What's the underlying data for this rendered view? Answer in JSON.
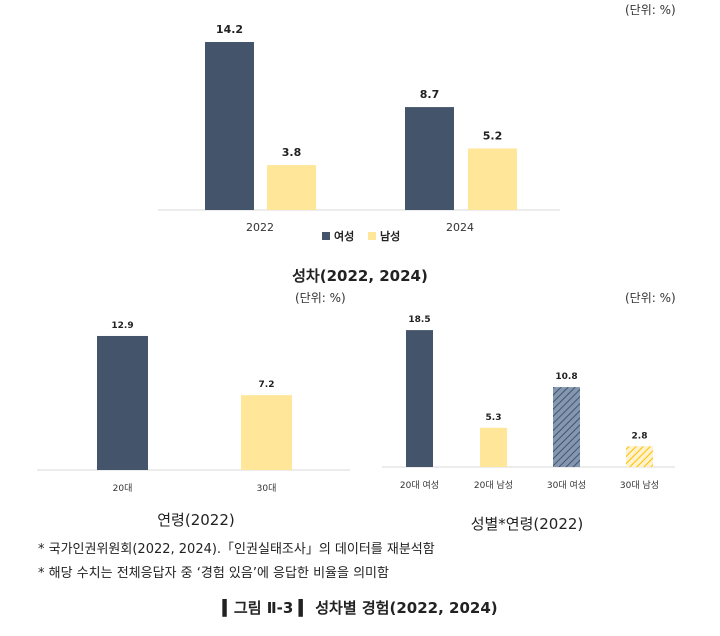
{
  "colors": {
    "women": "#44546a",
    "men": "#ffe699",
    "women30_hatch": "#8497b0",
    "men30_hatch": "#ffc000",
    "axis": "#d9d9d9"
  },
  "chart_data": [
    {
      "type": "bar",
      "title": "성차(2022, 2024)",
      "unit": "(단위: %)",
      "categories": [
        "2022",
        "2024"
      ],
      "series": [
        {
          "name": "여성",
          "values": [
            14.2,
            8.7
          ]
        },
        {
          "name": "남성",
          "values": [
            3.8,
            5.2
          ]
        }
      ],
      "legend": "bottom",
      "grid": false
    },
    {
      "type": "bar",
      "title": "연령(2022)",
      "unit": "(단위: %)",
      "categories": [
        "20대",
        "30대"
      ],
      "values": [
        12.9,
        7.2
      ],
      "grid": false
    },
    {
      "type": "bar",
      "title": "성별*연령(2022)",
      "unit": "(단위: %)",
      "categories": [
        "20대 여성",
        "20대 남성",
        "30대 여성",
        "30대 남성"
      ],
      "values": [
        18.5,
        5.3,
        10.8,
        2.8
      ],
      "grid": false
    }
  ],
  "notes": [
    "*  국가인권위원회(2022, 2024).「인권실태조사」의 데이터를 재분석함",
    "*  해당 수치는 전체응답자 중 ‘경험 있음’에 응답한 비율을 의미함"
  ],
  "caption": "▍그림 Ⅱ-3 ▍ 성차별 경험(2022, 2024)"
}
